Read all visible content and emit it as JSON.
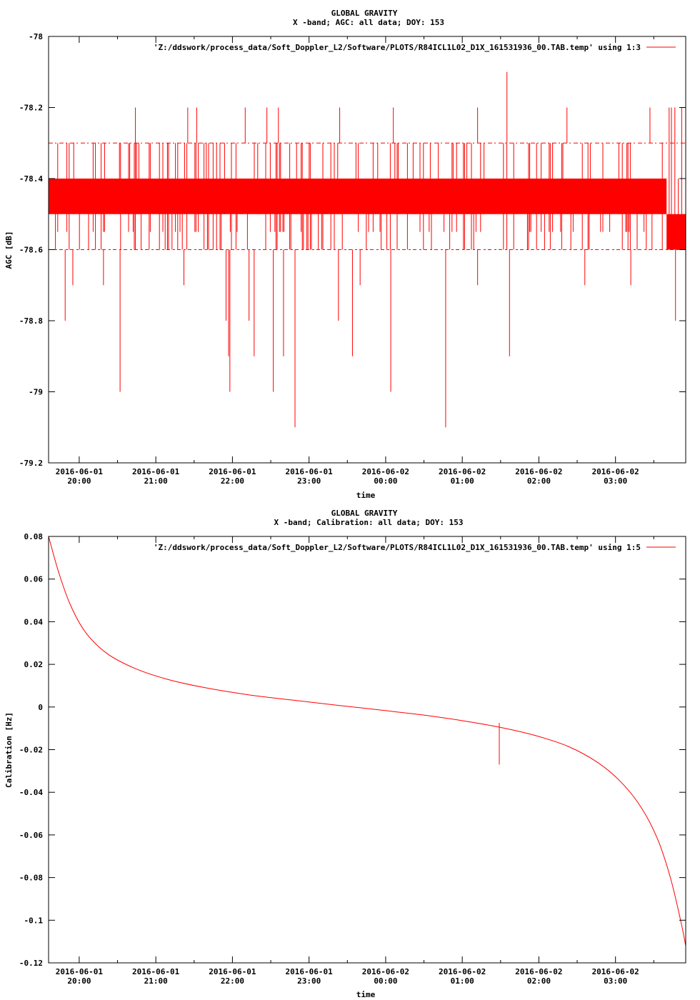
{
  "chart_data": [
    {
      "type": "line",
      "title": "GLOBAL GRAVITY",
      "subtitle": "X -band; AGC: all data; DOY: 153",
      "xlabel": "time",
      "ylabel": "AGC [dB]",
      "ylim": [
        -79.2,
        -78.0
      ],
      "yticks": [
        -78,
        -78.2,
        -78.4,
        -78.6,
        -78.8,
        -79,
        -79.2
      ],
      "ytick_labels": [
        "-78",
        "-78.2",
        "-78.4",
        "-78.6",
        "-78.8",
        "-79",
        "-79.2"
      ],
      "xlim": [
        "2016-06-01 19:36",
        "2016-06-02 03:55"
      ],
      "xticks": [
        "2016-06-01 20:00",
        "2016-06-01 21:00",
        "2016-06-01 22:00",
        "2016-06-01 23:00",
        "2016-06-02 00:00",
        "2016-06-02 01:00",
        "2016-06-02 02:00",
        "2016-06-02 03:00"
      ],
      "xtick_labels": [
        [
          "2016-06-01",
          "20:00"
        ],
        [
          "2016-06-01",
          "21:00"
        ],
        [
          "2016-06-01",
          "22:00"
        ],
        [
          "2016-06-01",
          "23:00"
        ],
        [
          "2016-06-02",
          "00:00"
        ],
        [
          "2016-06-02",
          "01:00"
        ],
        [
          "2016-06-02",
          "02:00"
        ],
        [
          "2016-06-02",
          "03:00"
        ]
      ],
      "color": "#ff0000",
      "series": [
        {
          "name": "'Z:/ddswork/process_data/Soft_Doppler_L2/Software/PLOTS/R84ICL1L02_D1X_161531936_00.TAB.temp' using 1:3",
          "band": {
            "core": [
              -78.4,
              -78.5
            ],
            "outer": [
              -78.3,
              -78.6
            ],
            "late_core": [
              -78.5,
              -78.6
            ],
            "late_from": "2016-06-02 03:40"
          },
          "spikes": [
            {
              "x": "2016-06-01 20:44",
              "y": -78.2
            },
            {
              "x": "2016-06-01 21:25",
              "y": -78.2
            },
            {
              "x": "2016-06-01 21:32",
              "y": -78.2
            },
            {
              "x": "2016-06-01 22:10",
              "y": -78.2
            },
            {
              "x": "2016-06-01 22:27",
              "y": -78.2
            },
            {
              "x": "2016-06-01 22:36",
              "y": -78.2
            },
            {
              "x": "2016-06-01 23:24",
              "y": -78.2
            },
            {
              "x": "2016-06-02 00:06",
              "y": -78.2
            },
            {
              "x": "2016-06-02 01:12",
              "y": -78.2
            },
            {
              "x": "2016-06-02 01:35",
              "y": -78.1
            },
            {
              "x": "2016-06-02 02:22",
              "y": -78.2
            },
            {
              "x": "2016-06-02 03:27",
              "y": -78.2
            },
            {
              "x": "2016-06-01 19:49",
              "y": -78.8
            },
            {
              "x": "2016-06-01 19:55",
              "y": -78.7
            },
            {
              "x": "2016-06-01 20:19",
              "y": -78.7
            },
            {
              "x": "2016-06-01 20:32",
              "y": -79.0
            },
            {
              "x": "2016-06-01 21:22",
              "y": -78.7
            },
            {
              "x": "2016-06-01 21:55",
              "y": -78.8
            },
            {
              "x": "2016-06-01 21:57",
              "y": -78.9
            },
            {
              "x": "2016-06-01 21:58",
              "y": -79.0
            },
            {
              "x": "2016-06-01 22:13",
              "y": -78.8
            },
            {
              "x": "2016-06-01 22:17",
              "y": -78.9
            },
            {
              "x": "2016-06-01 22:32",
              "y": -79.0
            },
            {
              "x": "2016-06-01 22:40",
              "y": -78.9
            },
            {
              "x": "2016-06-01 22:49",
              "y": -79.1
            },
            {
              "x": "2016-06-01 23:23",
              "y": -78.8
            },
            {
              "x": "2016-06-01 23:34",
              "y": -78.9
            },
            {
              "x": "2016-06-01 23:40",
              "y": -78.7
            },
            {
              "x": "2016-06-02 00:04",
              "y": -79.0
            },
            {
              "x": "2016-06-02 00:47",
              "y": -79.1
            },
            {
              "x": "2016-06-02 01:12",
              "y": -78.7
            },
            {
              "x": "2016-06-02 01:37",
              "y": -78.9
            },
            {
              "x": "2016-06-02 02:36",
              "y": -78.7
            },
            {
              "x": "2016-06-02 03:12",
              "y": -78.7
            },
            {
              "x": "2016-06-02 03:47",
              "y": -78.8
            }
          ]
        }
      ]
    },
    {
      "type": "line",
      "title": "GLOBAL GRAVITY",
      "subtitle": "X -band; Calibration: all data; DOY: 153",
      "xlabel": "time",
      "ylabel": "Calibration [Hz]",
      "ylim": [
        -0.12,
        0.08
      ],
      "yticks": [
        0.08,
        0.06,
        0.04,
        0.02,
        0,
        -0.02,
        -0.04,
        -0.06,
        -0.08,
        -0.1,
        -0.12
      ],
      "ytick_labels": [
        "0.08",
        "0.06",
        "0.04",
        "0.02",
        "0",
        "-0.02",
        "-0.04",
        "-0.06",
        "-0.08",
        "-0.1",
        "-0.12"
      ],
      "xlim": [
        "2016-06-01 19:36",
        "2016-06-02 03:55"
      ],
      "xticks": [
        "2016-06-01 20:00",
        "2016-06-01 21:00",
        "2016-06-01 22:00",
        "2016-06-01 23:00",
        "2016-06-02 00:00",
        "2016-06-02 01:00",
        "2016-06-02 02:00",
        "2016-06-02 03:00"
      ],
      "xtick_labels": [
        [
          "2016-06-01",
          "20:00"
        ],
        [
          "2016-06-01",
          "21:00"
        ],
        [
          "2016-06-01",
          "22:00"
        ],
        [
          "2016-06-01",
          "23:00"
        ],
        [
          "2016-06-02",
          "00:00"
        ],
        [
          "2016-06-02",
          "01:00"
        ],
        [
          "2016-06-02",
          "02:00"
        ],
        [
          "2016-06-02",
          "03:00"
        ]
      ],
      "color": "#ff0000",
      "series": [
        {
          "name": "'Z:/ddswork/process_data/Soft_Doppler_L2/Software/PLOTS/R84ICL1L02_D1X_161531936_00.TAB.temp' using 1:5",
          "points": [
            {
              "x": "2016-06-01 19:36",
              "y": 0.08
            },
            {
              "x": "2016-06-01 19:44",
              "y": 0.063
            },
            {
              "x": "2016-06-01 19:53",
              "y": 0.048
            },
            {
              "x": "2016-06-01 20:05",
              "y": 0.035
            },
            {
              "x": "2016-06-01 20:22",
              "y": 0.025
            },
            {
              "x": "2016-06-01 20:44",
              "y": 0.018
            },
            {
              "x": "2016-06-01 21:09",
              "y": 0.013
            },
            {
              "x": "2016-06-01 21:39",
              "y": 0.009
            },
            {
              "x": "2016-06-01 22:14",
              "y": 0.0056
            },
            {
              "x": "2016-06-01 22:49",
              "y": 0.0031
            },
            {
              "x": "2016-06-01 23:24",
              "y": 0.0007
            },
            {
              "x": "2016-06-01 23:57",
              "y": -0.0015
            },
            {
              "x": "2016-06-02 00:30",
              "y": -0.0038
            },
            {
              "x": "2016-06-02 01:02",
              "y": -0.0066
            },
            {
              "x": "2016-06-02 01:32",
              "y": -0.0098
            },
            {
              "x": "2016-06-02 01:58",
              "y": -0.0135
            },
            {
              "x": "2016-06-02 02:23",
              "y": -0.0185
            },
            {
              "x": "2016-06-02 02:46",
              "y": -0.026
            },
            {
              "x": "2016-06-02 03:04",
              "y": -0.035
            },
            {
              "x": "2016-06-02 03:20",
              "y": -0.047
            },
            {
              "x": "2016-06-02 03:33",
              "y": -0.062
            },
            {
              "x": "2016-06-02 03:43",
              "y": -0.08
            },
            {
              "x": "2016-06-02 03:51",
              "y": -0.1
            },
            {
              "x": "2016-06-02 03:55",
              "y": -0.112
            }
          ],
          "spikes": [
            {
              "x": "2016-06-02 01:29",
              "from": -0.0095,
              "to": -0.027
            },
            {
              "x": "2016-06-02 01:29",
              "from": -0.0075,
              "to": -0.0115
            }
          ]
        }
      ]
    }
  ]
}
